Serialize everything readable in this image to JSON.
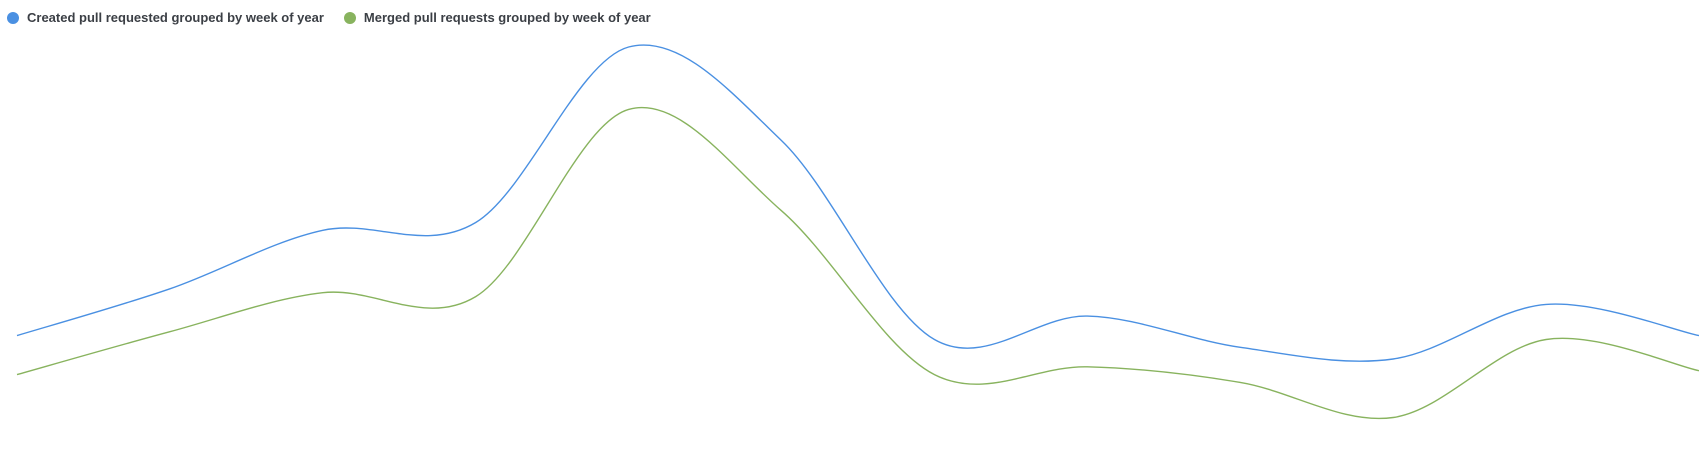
{
  "colors": {
    "created": "#4a90e2",
    "merged": "#88b35e",
    "text": "#3b3f45"
  },
  "legend": {
    "items": [
      {
        "label": "Created pull requested grouped by week of year",
        "color": "#4a90e2"
      },
      {
        "label": "Merged pull requests grouped by week of year",
        "color": "#88b35e"
      }
    ]
  },
  "chart_data": {
    "type": "line",
    "title": "",
    "xlabel": "",
    "ylabel": "",
    "grid": false,
    "legend_position": "top-left",
    "x": [
      1,
      2,
      3,
      4,
      5,
      6,
      7,
      8,
      9,
      10,
      11,
      12
    ],
    "ylim": [
      0,
      100
    ],
    "series": [
      {
        "name": "Created pull requested grouped by week of year",
        "color": "#4a90e2",
        "values": [
          26,
          38,
          53,
          55,
          100,
          76,
          25,
          31,
          23,
          20,
          34,
          26
        ]
      },
      {
        "name": "Merged pull requests grouped by week of year",
        "color": "#88b35e",
        "values": [
          16,
          27,
          37,
          36,
          84,
          58,
          16,
          18,
          14,
          5,
          25,
          17
        ]
      }
    ]
  }
}
